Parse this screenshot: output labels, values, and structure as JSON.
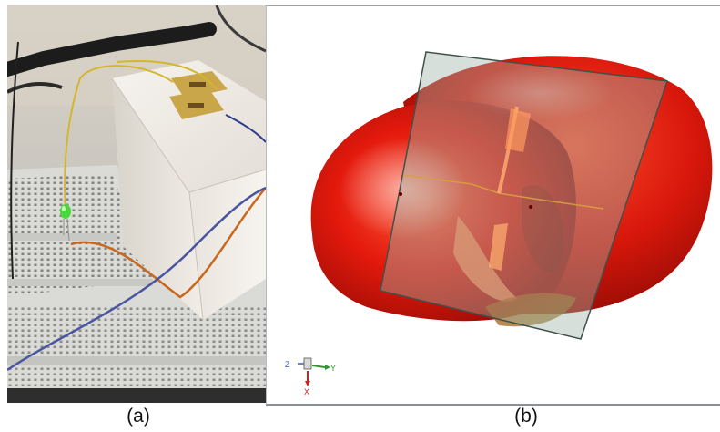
{
  "figure": {
    "caption_a": "(a)",
    "caption_b": "(b)"
  },
  "axes_triad": {
    "z_label": "Z",
    "y_label": "Y",
    "x_label": "X"
  },
  "colors": {
    "pattern_red": "#e0180c",
    "substrate": "#9fb3a8",
    "box": "#ece8e2",
    "breadboard": "#dcdcd8",
    "copper_pad": "#c9a64a"
  }
}
